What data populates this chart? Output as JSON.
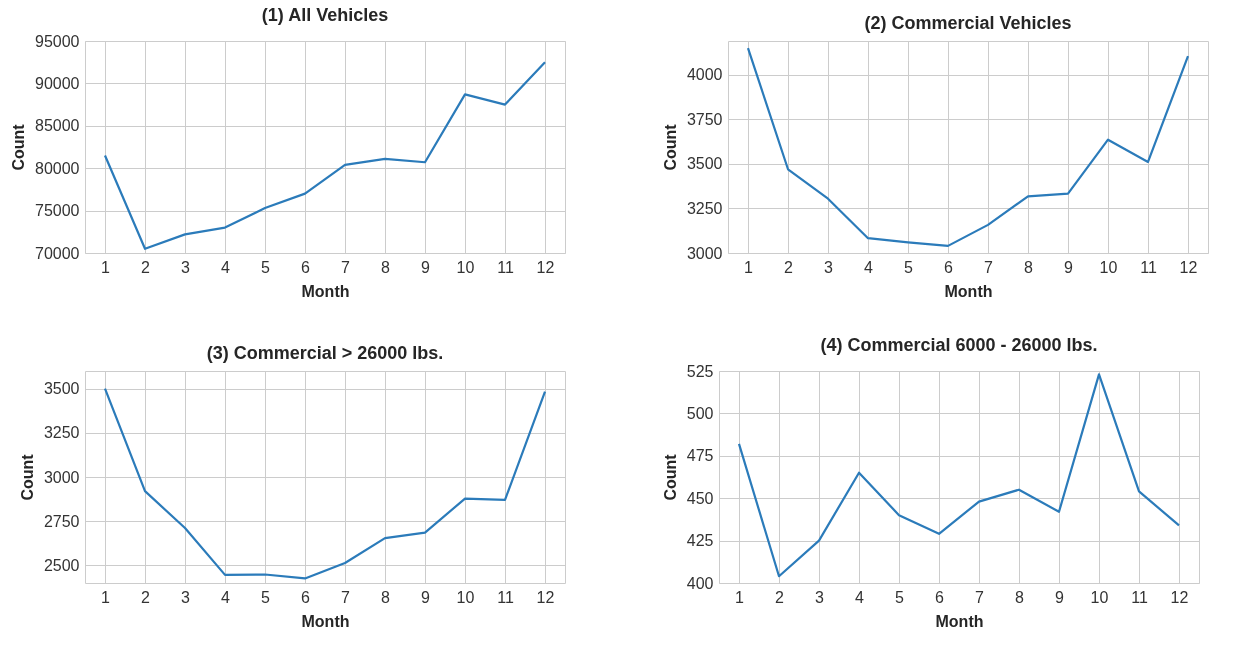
{
  "chart_data": [
    {
      "type": "line",
      "title": "(1) All Vehicles",
      "xlabel": "Month",
      "ylabel": "Count",
      "x": [
        1,
        2,
        3,
        4,
        5,
        6,
        7,
        8,
        9,
        10,
        11,
        12
      ],
      "xlim": [
        0.5,
        12.5
      ],
      "xticks": [
        1,
        2,
        3,
        4,
        5,
        6,
        7,
        8,
        9,
        10,
        11,
        12
      ],
      "ylim": [
        70000,
        95000
      ],
      "yticks": [
        70000,
        75000,
        80000,
        85000,
        90000,
        95000
      ],
      "grid": true,
      "series": [
        {
          "color": "#2b7bba",
          "values": [
            81500,
            70500,
            72200,
            73000,
            75300,
            77000,
            80400,
            81100,
            80700,
            88700,
            87500,
            92500
          ]
        }
      ]
    },
    {
      "type": "line",
      "title": "(2) Commercial Vehicles",
      "xlabel": "Month",
      "ylabel": "Count",
      "x": [
        1,
        2,
        3,
        4,
        5,
        6,
        7,
        8,
        9,
        10,
        11,
        12
      ],
      "xlim": [
        0.5,
        12.5
      ],
      "xticks": [
        1,
        2,
        3,
        4,
        5,
        6,
        7,
        8,
        9,
        10,
        11,
        12
      ],
      "ylim": [
        3000,
        4190
      ],
      "yticks": [
        3000,
        3250,
        3500,
        3750,
        4000
      ],
      "grid": true,
      "series": [
        {
          "color": "#2b7bba",
          "values": [
            4150,
            3470,
            3305,
            3083,
            3060,
            3040,
            3158,
            3318,
            3333,
            3636,
            3511,
            4105
          ]
        }
      ]
    },
    {
      "type": "line",
      "title": "(3) Commercial > 26000 lbs.",
      "xlabel": "Month",
      "ylabel": "Count",
      "x": [
        1,
        2,
        3,
        4,
        5,
        6,
        7,
        8,
        9,
        10,
        11,
        12
      ],
      "xlim": [
        0.5,
        12.5
      ],
      "xticks": [
        1,
        2,
        3,
        4,
        5,
        6,
        7,
        8,
        9,
        10,
        11,
        12
      ],
      "ylim": [
        2400,
        3600
      ],
      "yticks": [
        2500,
        2750,
        3000,
        3250,
        3500
      ],
      "grid": true,
      "series": [
        {
          "color": "#2b7bba",
          "values": [
            3500,
            2920,
            2711,
            2446,
            2448,
            2426,
            2513,
            2654,
            2685,
            2878,
            2870,
            3483
          ]
        }
      ]
    },
    {
      "type": "line",
      "title": "(4) Commercial 6000 - 26000 lbs.",
      "xlabel": "Month",
      "ylabel": "Count",
      "x": [
        1,
        2,
        3,
        4,
        5,
        6,
        7,
        8,
        9,
        10,
        11,
        12
      ],
      "xlim": [
        0.5,
        12.5
      ],
      "xticks": [
        1,
        2,
        3,
        4,
        5,
        6,
        7,
        8,
        9,
        10,
        11,
        12
      ],
      "ylim": [
        400,
        525
      ],
      "yticks": [
        400,
        425,
        450,
        475,
        500,
        525
      ],
      "grid": true,
      "series": [
        {
          "color": "#2b7bba",
          "values": [
            482,
            404,
            425,
            465,
            440,
            429,
            448,
            455,
            442,
            523,
            454,
            434
          ]
        }
      ]
    }
  ]
}
